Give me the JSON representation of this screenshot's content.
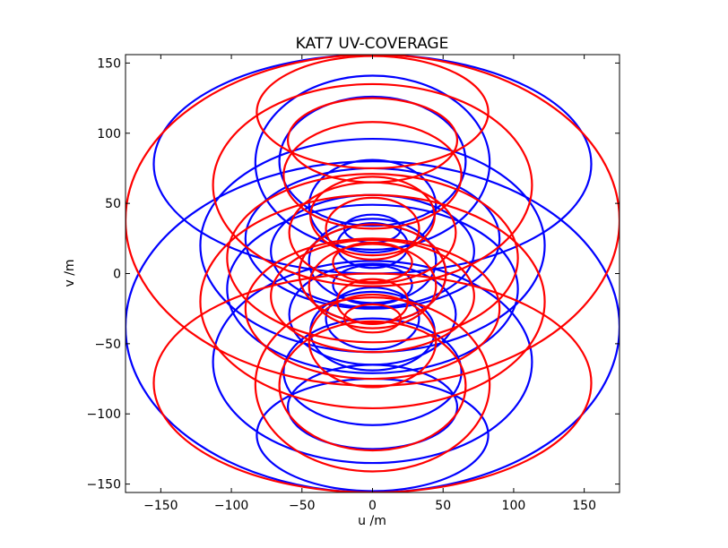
{
  "chart_data": {
    "type": "line",
    "title": "KAT7 UV-COVERAGE",
    "xlabel": "u /m",
    "ylabel": "v /m",
    "xlim": [
      -175,
      175
    ],
    "ylim": [
      -156,
      156
    ],
    "xticks": [
      -150,
      -100,
      -50,
      0,
      50,
      100,
      150
    ],
    "yticks": [
      -150,
      -100,
      -50,
      0,
      50,
      100,
      150
    ],
    "xtick_labels": [
      "−150",
      "−100",
      "−50",
      "0",
      "50",
      "100",
      "150"
    ],
    "ytick_labels": [
      "−150",
      "−100",
      "−50",
      "0",
      "50",
      "100",
      "150"
    ],
    "grid": false,
    "colors": {
      "baseline": "#0000ff",
      "conjugate": "#ff0000"
    },
    "series": [
      {
        "color": "#0000ff",
        "tracks": [
          {
            "cx": 0,
            "cy": 78,
            "a": 155,
            "b": 78
          },
          {
            "cx": 0,
            "cy": -38,
            "a": 175,
            "b": 118
          },
          {
            "cx": 0,
            "cy": 20,
            "a": 122,
            "b": 76
          },
          {
            "cx": 0,
            "cy": -63,
            "a": 113,
            "b": 72
          },
          {
            "cx": 0,
            "cy": 79,
            "a": 83,
            "b": 62
          },
          {
            "cx": 0,
            "cy": 80,
            "a": 66,
            "b": 46
          },
          {
            "cx": 0,
            "cy": -115,
            "a": 82,
            "b": 40
          },
          {
            "cx": 0,
            "cy": -11,
            "a": 103,
            "b": 60
          },
          {
            "cx": 0,
            "cy": 16,
            "a": 72,
            "b": 40
          },
          {
            "cx": 0,
            "cy": 48,
            "a": 45,
            "b": 33
          },
          {
            "cx": 0,
            "cy": 9,
            "a": 45,
            "b": 30
          },
          {
            "cx": 0,
            "cy": -29,
            "a": 59,
            "b": 36
          },
          {
            "cx": 0,
            "cy": -41,
            "a": 44,
            "b": 28
          },
          {
            "cx": 0,
            "cy": -32,
            "a": 33,
            "b": 22
          },
          {
            "cx": 0,
            "cy": 0,
            "a": 52,
            "b": 35
          },
          {
            "cx": 0,
            "cy": 20,
            "a": 25,
            "b": 16
          },
          {
            "cx": 0,
            "cy": -70,
            "a": 63,
            "b": 38
          },
          {
            "cx": 0,
            "cy": 32,
            "a": 20,
            "b": 10
          },
          {
            "cx": 0,
            "cy": -8,
            "a": 28,
            "b": 14
          },
          {
            "cx": 0,
            "cy": -95,
            "a": 60,
            "b": 30
          },
          {
            "cx": 0,
            "cy": 25,
            "a": 90,
            "b": 50
          }
        ]
      },
      {
        "color": "#ff0000",
        "tracks": [
          {
            "cx": 0,
            "cy": -78,
            "a": 155,
            "b": 78
          },
          {
            "cx": 0,
            "cy": 38,
            "a": 175,
            "b": 118
          },
          {
            "cx": 0,
            "cy": -20,
            "a": 122,
            "b": 76
          },
          {
            "cx": 0,
            "cy": 63,
            "a": 113,
            "b": 72
          },
          {
            "cx": 0,
            "cy": -79,
            "a": 83,
            "b": 62
          },
          {
            "cx": 0,
            "cy": -80,
            "a": 66,
            "b": 46
          },
          {
            "cx": 0,
            "cy": 115,
            "a": 82,
            "b": 40
          },
          {
            "cx": 0,
            "cy": 11,
            "a": 103,
            "b": 60
          },
          {
            "cx": 0,
            "cy": -16,
            "a": 72,
            "b": 40
          },
          {
            "cx": 0,
            "cy": -48,
            "a": 45,
            "b": 33
          },
          {
            "cx": 0,
            "cy": -9,
            "a": 45,
            "b": 30
          },
          {
            "cx": 0,
            "cy": 29,
            "a": 59,
            "b": 36
          },
          {
            "cx": 0,
            "cy": 41,
            "a": 44,
            "b": 28
          },
          {
            "cx": 0,
            "cy": 32,
            "a": 33,
            "b": 22
          },
          {
            "cx": 0,
            "cy": 0,
            "a": 52,
            "b": 35
          },
          {
            "cx": 0,
            "cy": -20,
            "a": 25,
            "b": 16
          },
          {
            "cx": 0,
            "cy": 70,
            "a": 63,
            "b": 38
          },
          {
            "cx": 0,
            "cy": -32,
            "a": 20,
            "b": 10
          },
          {
            "cx": 0,
            "cy": 8,
            "a": 28,
            "b": 14
          },
          {
            "cx": 0,
            "cy": 95,
            "a": 60,
            "b": 30
          },
          {
            "cx": 0,
            "cy": -25,
            "a": 90,
            "b": 50
          }
        ]
      }
    ]
  }
}
